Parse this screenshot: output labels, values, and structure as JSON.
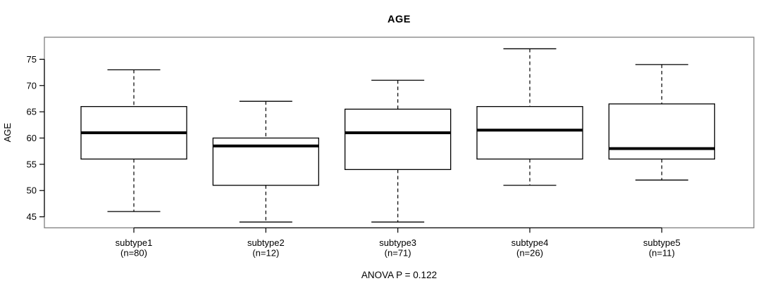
{
  "chart_data": {
    "type": "boxplot",
    "title": "AGE",
    "ylabel": "AGE",
    "xlabel": "",
    "annotation": "ANOVA P = 0.122",
    "ylim": [
      42.9,
      79.2
    ],
    "yticks": [
      45,
      50,
      55,
      60,
      65,
      70,
      75
    ],
    "grid": false,
    "legend": "none",
    "categories": [
      {
        "label": "subtype1",
        "sublabel": "(n=80)",
        "n": 80,
        "whisker_low": 46,
        "q1": 56,
        "median": 61,
        "q3": 66,
        "whisker_high": 73
      },
      {
        "label": "subtype2",
        "sublabel": "(n=12)",
        "n": 12,
        "whisker_low": 44,
        "q1": 51,
        "median": 58.5,
        "q3": 60,
        "whisker_high": 67
      },
      {
        "label": "subtype3",
        "sublabel": "(n=71)",
        "n": 71,
        "whisker_low": 44,
        "q1": 54,
        "median": 61,
        "q3": 65.5,
        "whisker_high": 71
      },
      {
        "label": "subtype4",
        "sublabel": "(n=26)",
        "n": 26,
        "whisker_low": 51,
        "q1": 56,
        "median": 61.5,
        "q3": 66,
        "whisker_high": 77
      },
      {
        "label": "subtype5",
        "sublabel": "(n=11)",
        "n": 11,
        "whisker_low": 52,
        "q1": 56,
        "median": 58,
        "q3": 66.5,
        "whisker_high": 74
      }
    ],
    "colors": {
      "line": "#000000",
      "frame": "#7f7f7f",
      "box_fill": "#ffffff",
      "background": "#ffffff"
    }
  }
}
